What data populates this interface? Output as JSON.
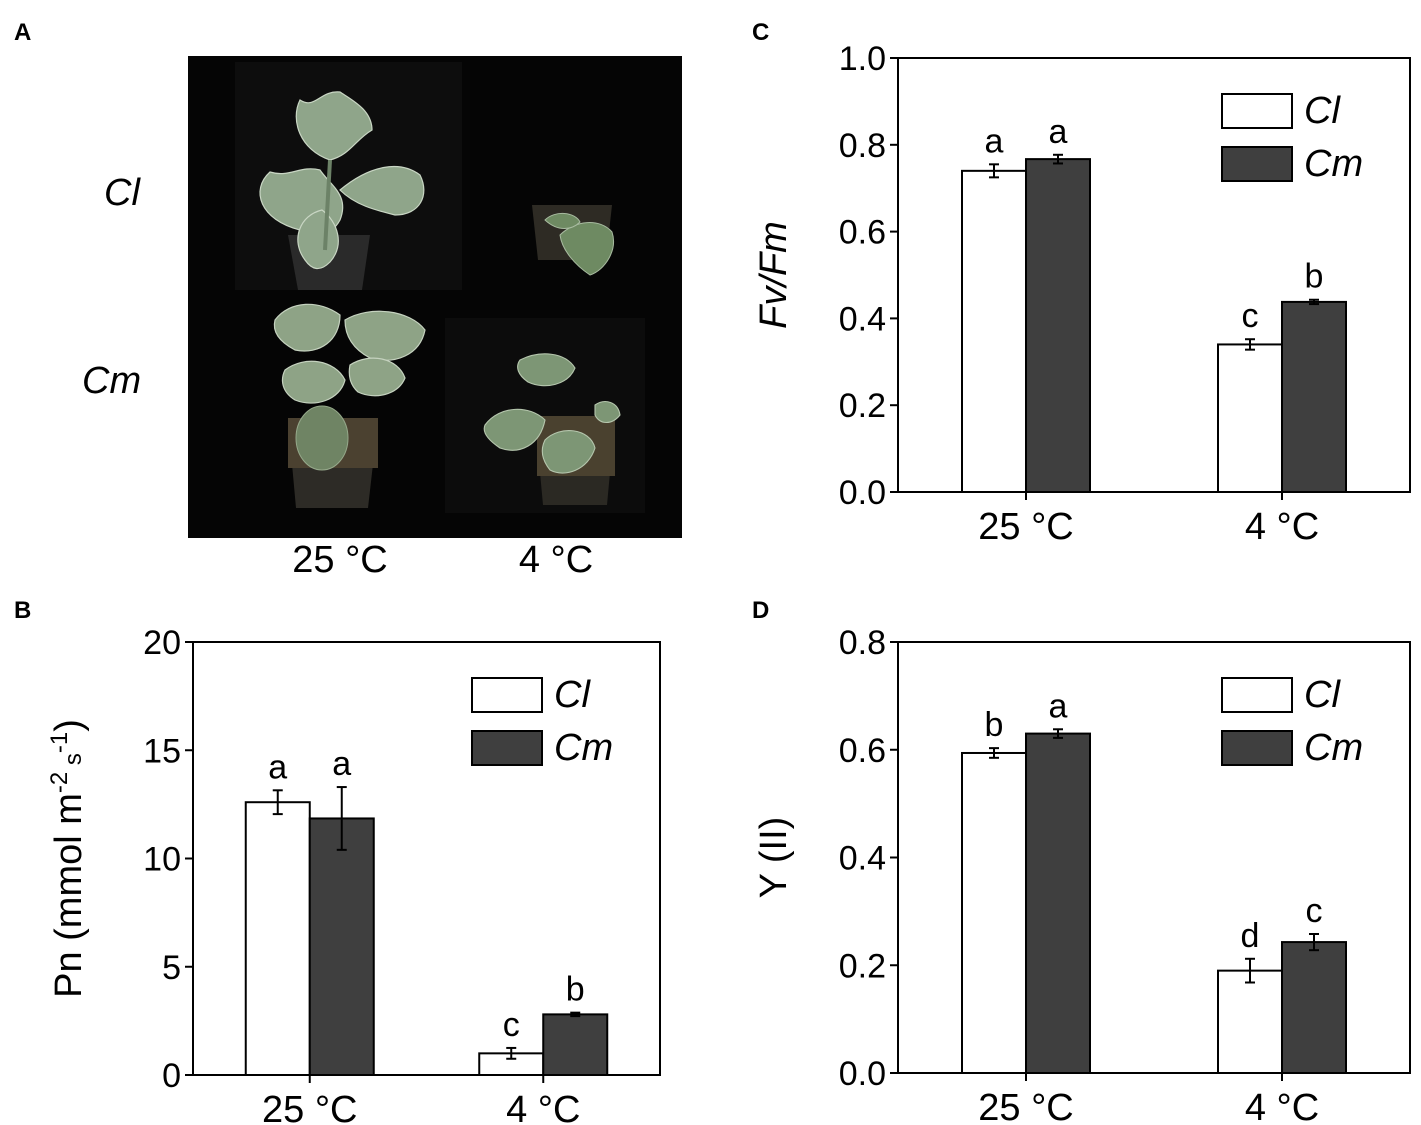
{
  "panel_a": {
    "label": "A",
    "rows": [
      "Cl",
      "Cm"
    ],
    "columns": [
      "25 °C",
      "4 °C"
    ]
  },
  "chart_data": [
    {
      "panel": "B",
      "type": "bar",
      "categories": [
        "25 °C",
        "4 °C"
      ],
      "ylabel": "Pn (mmol m-2 s-1)",
      "ylabel_parts": {
        "main": "Pn (mmol m",
        "sup1": "-2",
        "mid": " s",
        "sup2": "-1",
        "end": ")"
      },
      "ylim": [
        0,
        20
      ],
      "yticks": [
        "0",
        "5",
        "10",
        "15",
        "20"
      ],
      "yticks_values": [
        0,
        5,
        10,
        15,
        20
      ],
      "legend_position": "top-right",
      "series": [
        {
          "name": "Cl",
          "color": "#ffffff",
          "values": [
            12.6,
            1.0
          ],
          "errors": [
            0.55,
            0.25
          ],
          "letters": [
            "a",
            "c"
          ]
        },
        {
          "name": "Cm",
          "color": "#3f3f3f",
          "values": [
            11.85,
            2.8
          ],
          "errors": [
            1.45,
            0.08
          ],
          "letters": [
            "a",
            "b"
          ]
        }
      ]
    },
    {
      "panel": "C",
      "type": "bar",
      "categories": [
        "25 °C",
        "4 °C"
      ],
      "ylabel": "Fv/Fm",
      "ylim": [
        0,
        1.0
      ],
      "yticks": [
        "0.0",
        "0.2",
        "0.4",
        "0.6",
        "0.8",
        "1.0"
      ],
      "yticks_values": [
        0,
        0.2,
        0.4,
        0.6,
        0.8,
        1.0
      ],
      "legend_position": "top-right",
      "series": [
        {
          "name": "Cl",
          "color": "#ffffff",
          "values": [
            0.74,
            0.34
          ],
          "errors": [
            0.015,
            0.012
          ],
          "letters": [
            "a",
            "c"
          ]
        },
        {
          "name": "Cm",
          "color": "#3f3f3f",
          "values": [
            0.767,
            0.438
          ],
          "errors": [
            0.01,
            0.005
          ],
          "letters": [
            "a",
            "b"
          ]
        }
      ]
    },
    {
      "panel": "D",
      "type": "bar",
      "categories": [
        "25 °C",
        "4 °C"
      ],
      "ylabel": "Y (II)",
      "ylim": [
        0,
        0.8
      ],
      "yticks": [
        "0.0",
        "0.2",
        "0.4",
        "0.6",
        "0.8"
      ],
      "yticks_values": [
        0,
        0.2,
        0.4,
        0.6,
        0.8
      ],
      "legend_position": "top-right",
      "series": [
        {
          "name": "Cl",
          "color": "#ffffff",
          "values": [
            0.594,
            0.19
          ],
          "errors": [
            0.009,
            0.022
          ],
          "letters": [
            "b",
            "d"
          ]
        },
        {
          "name": "Cm",
          "color": "#3f3f3f",
          "values": [
            0.63,
            0.243
          ],
          "errors": [
            0.008,
            0.015
          ],
          "letters": [
            "a",
            "c"
          ]
        }
      ]
    }
  ]
}
